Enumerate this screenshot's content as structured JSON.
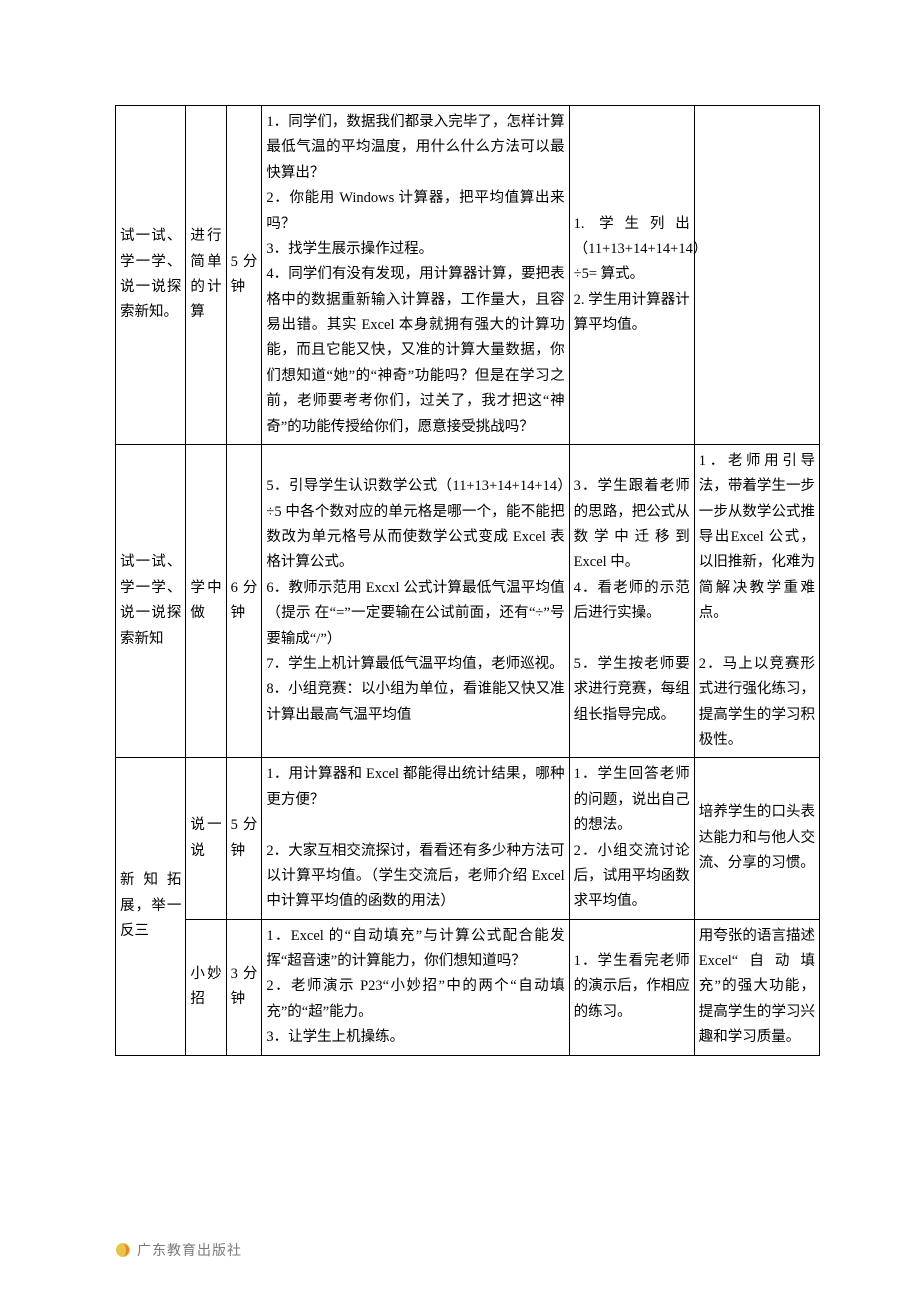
{
  "colors": {
    "page_bg": "#ffffff",
    "text": "#000000",
    "border": "#000000",
    "footer_text": "#7a7a7a",
    "logo_outer": "#e6c54a",
    "logo_inner": "#e08a2e"
  },
  "typography": {
    "body_font": "SimSun",
    "body_size_pt": 11,
    "line_height": 1.75
  },
  "columns": {
    "stage_w": 63,
    "sub_w": 36,
    "time_w": 32,
    "teacher_w": 275,
    "student_w": 112,
    "notes_w": 112
  },
  "rows": [
    {
      "stage": "试一试、学一学、说一说探索新知。",
      "sub": "进行简单的计算",
      "time": "5分钟",
      "teacher": "1．同学们，数据我们都录入完毕了，怎样计算最低气温的平均温度，用什么什么方法可以最快算出？\n2．你能用 Windows 计算器，把平均值算出来吗？\n3．找学生展示操作过程。\n4．同学们有没有发现，用计算器计算，要把表格中的数据重新输入计算器，工作量大，且容易出错。其实 Excel 本身就拥有强大的计算功能，而且它能又快，又准的计算大量数据，你们想知道“她”的“神奇”功能吗？但是在学习之前，老师要考考你们，过关了，我才把这“神奇”的功能传授给你们，愿意接受挑战吗？",
      "student": "1. 学生列出（11+13+14+14+14）÷5= 算式。\n2. 学生用计算器计算平均值。",
      "notes": ""
    },
    {
      "stage": "试一试、学一学、说一说探索新知",
      "sub": "学中做",
      "time": "6分钟",
      "teacher": "5．引导学生认识数学公式（11+13+14+14+14）÷5 中各个数对应的单元格是哪一个，能不能把数改为单元格号从而使数学公式变成 Excel 表格计算公式。\n6．教师示范用 Excxl 公式计算最低气温平均值（提示 在“=”一定要输在公试前面，还有“÷”号要输成“/”）\n7．学生上机计算最低气温平均值，老师巡视。\n8．小组竞赛：以小组为单位，看谁能又快又准计算出最高气温平均值",
      "student": "3．学生跟着老师的思路，把公式从数学中迁移到 Excel 中。\n4．看老师的示范后进行实操。\n\n5．学生按老师要求进行竞赛，每组组长指导完成。",
      "notes": "1．老师用引导法，带着学生一步一步从数学公式推导出Excel 公式，以旧推新，化难为简解决教学重难点。\n\n2．马上以竞赛形式进行强化练习，提高学生的学习积极性。"
    },
    {
      "stage_rowspan": 2,
      "stage": "新知拓展，举一反三",
      "sub": "说一说",
      "time": "5分钟",
      "teacher": "1．用计算器和 Excel 都能得出统计结果，哪种更方便？\n\n2．大家互相交流探讨，看看还有多少种方法可以计算平均值。（学生交流后，老师介绍 Excel 中计算平均值的函数的用法）",
      "student": "1．学生回答老师的问题，说出自己的想法。\n2．小组交流讨论后，试用平均函数求平均值。",
      "notes": "培养学生的口头表达能力和与他人交流、分享的习惯。"
    },
    {
      "sub": "小妙招",
      "time": "3分钟",
      "teacher": "1．Excel 的“自动填充”与计算公式配合能发挥“超音速”的计算能力，你们想知道吗？\n2．老师演示 P23“小妙招”中的两个“自动填充”的“超”能力。\n3．让学生上机操练。",
      "student": "1．学生看完老师的演示后，作相应的练习。",
      "notes": "用夸张的语言描述 Excel“自动填充”的强大功能，提高学生的学习兴趣和学习质量。"
    }
  ],
  "footer": {
    "publisher": "广东教育出版社"
  }
}
